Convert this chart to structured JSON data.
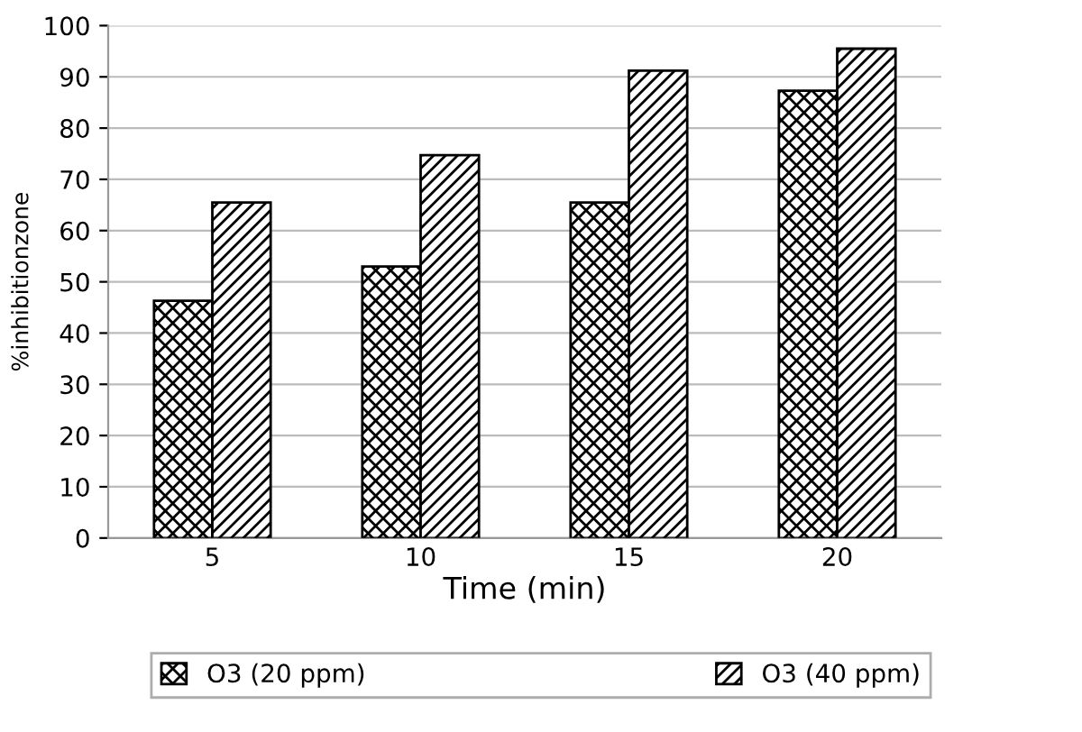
{
  "chart_data": {
    "type": "bar",
    "xlabel": "Time (min)",
    "ylabel": "%inhibitionzone",
    "categories": [
      "5",
      "10",
      "15",
      "20"
    ],
    "series": [
      {
        "name": "O3 (20 ppm)",
        "color": "#000000",
        "values": [
          46.3,
          53,
          65.5,
          87.3
        ]
      },
      {
        "name": "O3 (40 ppm)",
        "color": "#000000",
        "values": [
          65.5,
          74.7,
          91.2,
          95.5
        ]
      }
    ],
    "ylim": [
      0,
      100
    ],
    "yticks": [
      0,
      10,
      20,
      30,
      40,
      50,
      60,
      70,
      80,
      90,
      100
    ],
    "grid": "y",
    "legend": "bottom"
  }
}
